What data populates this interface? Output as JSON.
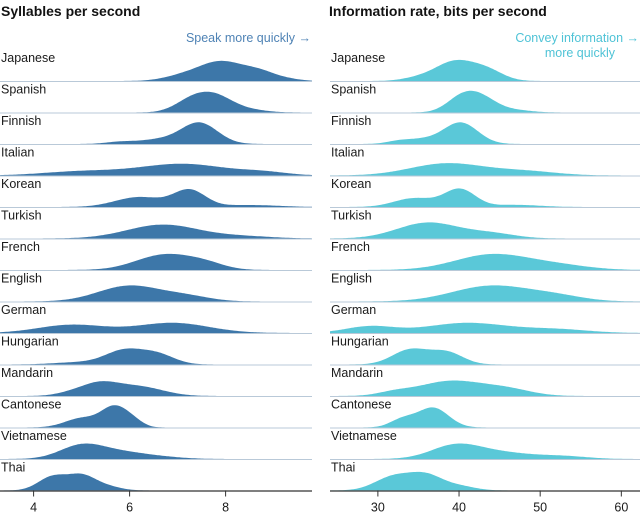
{
  "chart_data": [
    {
      "type": "ridgeline",
      "title": "Syllables per second",
      "annotation": "Speak more quickly →",
      "color": "#3d77a9",
      "annotation_color": "#4f83b5",
      "xlim": [
        3.3,
        9.8
      ],
      "xticks": [
        4,
        6,
        8
      ],
      "series": [
        {
          "name": "Japanese",
          "relative_peak": 0.65,
          "peaks": [
            [
              7.9,
              0.45,
              1
            ],
            [
              8.7,
              0.35,
              0.45
            ],
            [
              7.1,
              0.4,
              0.25
            ],
            [
              9.3,
              0.3,
              0.08
            ]
          ]
        },
        {
          "name": "Spanish",
          "relative_peak": 0.67,
          "peaks": [
            [
              7.3,
              0.35,
              0.8
            ],
            [
              7.8,
              0.35,
              0.9
            ],
            [
              8.4,
              0.4,
              0.2
            ]
          ]
        },
        {
          "name": "Finnish",
          "relative_peak": 0.7,
          "peaks": [
            [
              7.45,
              0.38,
              1
            ],
            [
              5.8,
              0.3,
              0.1
            ],
            [
              6.6,
              0.4,
              0.2
            ]
          ]
        },
        {
          "name": "Italian",
          "relative_peak": 0.38,
          "peaks": [
            [
              7.1,
              0.9,
              1
            ],
            [
              5.0,
              0.8,
              0.35
            ],
            [
              8.8,
              0.5,
              0.25
            ]
          ]
        },
        {
          "name": "Korean",
          "relative_peak": 0.58,
          "peaks": [
            [
              7.25,
              0.33,
              1
            ],
            [
              6.2,
              0.5,
              0.6
            ],
            [
              8.5,
              0.6,
              0.12
            ]
          ]
        },
        {
          "name": "Turkish",
          "relative_peak": 0.45,
          "peaks": [
            [
              6.7,
              0.75,
              1
            ],
            [
              8.4,
              0.6,
              0.15
            ]
          ]
        },
        {
          "name": "French",
          "relative_peak": 0.52,
          "peaks": [
            [
              6.75,
              0.6,
              1
            ],
            [
              7.6,
              0.4,
              0.3
            ]
          ]
        },
        {
          "name": "English",
          "relative_peak": 0.52,
          "peaks": [
            [
              6.0,
              0.65,
              1
            ],
            [
              7.2,
              0.5,
              0.3
            ]
          ]
        },
        {
          "name": "German",
          "relative_peak": 0.33,
          "peaks": [
            [
              4.8,
              0.7,
              0.65
            ],
            [
              6.9,
              0.75,
              0.8
            ]
          ]
        },
        {
          "name": "Hungarian",
          "relative_peak": 0.52,
          "peaks": [
            [
              5.9,
              0.4,
              1
            ],
            [
              6.6,
              0.35,
              0.65
            ],
            [
              4.9,
              0.5,
              0.15
            ]
          ]
        },
        {
          "name": "Mandarin",
          "relative_peak": 0.48,
          "peaks": [
            [
              5.35,
              0.4,
              1
            ],
            [
              6.2,
              0.5,
              0.75
            ],
            [
              4.7,
              0.3,
              0.15
            ]
          ]
        },
        {
          "name": "Cantonese",
          "relative_peak": 0.72,
          "peaks": [
            [
              5.7,
              0.28,
              1
            ],
            [
              5.0,
              0.35,
              0.45
            ],
            [
              6.1,
              0.2,
              0.2
            ]
          ]
        },
        {
          "name": "Vietnamese",
          "relative_peak": 0.5,
          "peaks": [
            [
              5.0,
              0.45,
              1
            ],
            [
              5.8,
              0.5,
              0.45
            ],
            [
              6.6,
              0.5,
              0.15
            ]
          ]
        },
        {
          "name": "Thai",
          "relative_peak": 0.55,
          "peaks": [
            [
              4.4,
              0.3,
              1
            ],
            [
              5.0,
              0.28,
              1
            ],
            [
              5.5,
              0.3,
              0.3
            ]
          ]
        }
      ]
    },
    {
      "type": "ridgeline",
      "title": "Information rate, bits per second",
      "annotation": [
        "Convey information →",
        "more quickly"
      ],
      "color": "#5ac8d8",
      "annotation_color": "#4fc3d6",
      "xlim": [
        24.1,
        62.3
      ],
      "xticks": [
        30,
        40,
        50,
        60
      ],
      "series": [
        {
          "name": "Japanese",
          "relative_peak": 0.68,
          "peaks": [
            [
              39.5,
              2.4,
              1
            ],
            [
              43.5,
              2,
              0.5
            ],
            [
              35,
              2,
              0.15
            ]
          ]
        },
        {
          "name": "Spanish",
          "relative_peak": 0.7,
          "peaks": [
            [
              40.1,
              1.8,
              0.8
            ],
            [
              42.6,
              2,
              1
            ],
            [
              47,
              2,
              0.15
            ]
          ]
        },
        {
          "name": "Finnish",
          "relative_peak": 0.7,
          "peaks": [
            [
              40.2,
              2.1,
              1
            ],
            [
              32.5,
              1.5,
              0.12
            ],
            [
              35.5,
              2,
              0.2
            ]
          ]
        },
        {
          "name": "Italian",
          "relative_peak": 0.4,
          "peaks": [
            [
              38.5,
              4.5,
              1
            ],
            [
              48,
              4,
              0.35
            ]
          ]
        },
        {
          "name": "Korean",
          "relative_peak": 0.6,
          "peaks": [
            [
              40.1,
              1.9,
              1
            ],
            [
              34.5,
              2.5,
              0.5
            ],
            [
              47,
              3,
              0.12
            ]
          ]
        },
        {
          "name": "Turkish",
          "relative_peak": 0.52,
          "peaks": [
            [
              36.2,
              3.8,
              1
            ],
            [
              44,
              3,
              0.3
            ]
          ]
        },
        {
          "name": "French",
          "relative_peak": 0.52,
          "peaks": [
            [
              44,
              4.5,
              1
            ],
            [
              52,
              4,
              0.3
            ]
          ]
        },
        {
          "name": "English",
          "relative_peak": 0.52,
          "peaks": [
            [
              44,
              4.8,
              1
            ],
            [
              52,
              3.5,
              0.3
            ]
          ]
        },
        {
          "name": "German",
          "relative_peak": 0.33,
          "peaks": [
            [
              29,
              3,
              0.55
            ],
            [
              41,
              5,
              0.85
            ],
            [
              52,
              4,
              0.3
            ]
          ]
        },
        {
          "name": "Hungarian",
          "relative_peak": 0.52,
          "peaks": [
            [
              34,
              2.2,
              1
            ],
            [
              38.5,
              2,
              0.8
            ]
          ]
        },
        {
          "name": "Mandarin",
          "relative_peak": 0.5,
          "peaks": [
            [
              39,
              4,
              1
            ],
            [
              46,
              3,
              0.4
            ],
            [
              32,
              2,
              0.2
            ]
          ]
        },
        {
          "name": "Cantonese",
          "relative_peak": 0.65,
          "peaks": [
            [
              36.8,
              1.9,
              1
            ],
            [
              33,
              1.5,
              0.4
            ]
          ]
        },
        {
          "name": "Vietnamese",
          "relative_peak": 0.5,
          "peaks": [
            [
              39.5,
              3,
              1
            ],
            [
              45,
              4,
              0.5
            ],
            [
              53,
              3,
              0.2
            ]
          ]
        },
        {
          "name": "Thai",
          "relative_peak": 0.6,
          "peaks": [
            [
              32,
              2.3,
              1
            ],
            [
              36,
              2,
              1
            ],
            [
              40,
              2,
              0.3
            ]
          ]
        }
      ]
    }
  ]
}
